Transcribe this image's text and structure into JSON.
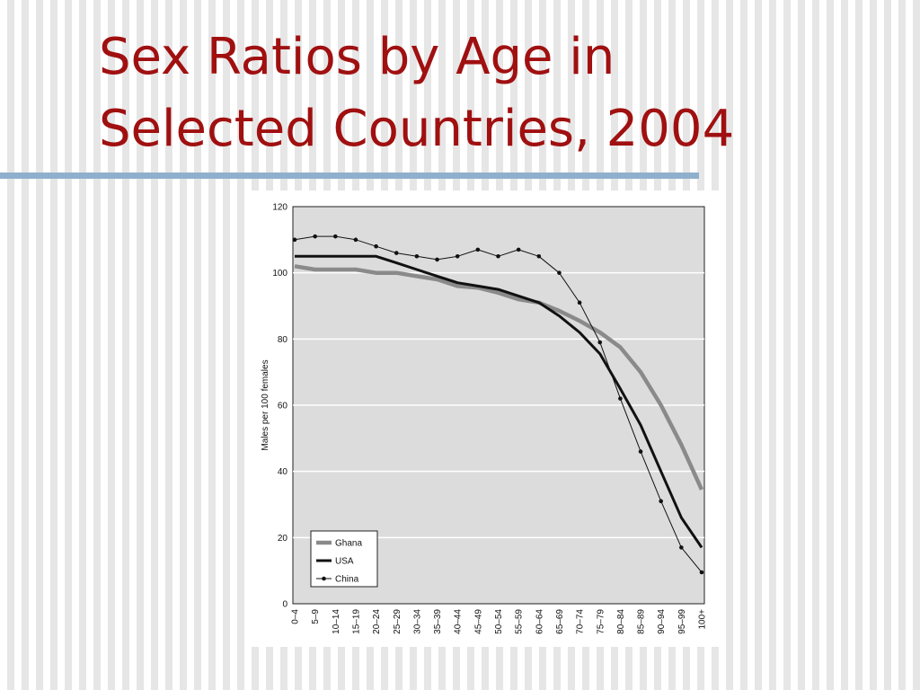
{
  "slide": {
    "title_line1": "Sex Ratios by Age in",
    "title_line2": "Selected Countries, 2004"
  },
  "chart_data": {
    "type": "line",
    "title": "",
    "xlabel": "",
    "ylabel": "Males per 100 females",
    "ylim": [
      0,
      120
    ],
    "yticks": [
      0,
      20,
      40,
      60,
      80,
      100,
      120
    ],
    "grid": true,
    "legend_position": "bottom-left",
    "categories": [
      "0–4",
      "5–9",
      "10–14",
      "15–19",
      "20–24",
      "25–29",
      "30–34",
      "35–39",
      "40–44",
      "45–49",
      "50–54",
      "55–59",
      "60–64",
      "65–69",
      "70–74",
      "75–79",
      "80–84",
      "85–89",
      "90–94",
      "95–99",
      "100+"
    ],
    "series": [
      {
        "name": "Ghana",
        "color": "#8a8a8a",
        "style": "thick",
        "values": [
          102,
          101,
          101,
          101,
          100,
          100,
          99,
          98,
          96,
          95.5,
          94,
          92,
          91,
          88.5,
          85.5,
          82,
          77.5,
          70,
          60,
          48,
          34.5
        ]
      },
      {
        "name": "USA",
        "color": "#111111",
        "style": "medium",
        "values": [
          105,
          105,
          105,
          105,
          105,
          103,
          101,
          99,
          97,
          96,
          95,
          93,
          91,
          87,
          82,
          75.5,
          65,
          54,
          40,
          26,
          17
        ]
      },
      {
        "name": "China",
        "color": "#111111",
        "style": "thin-markers",
        "values": [
          110,
          111,
          111,
          110,
          108,
          106,
          105,
          104,
          105,
          107,
          105,
          107,
          105,
          100,
          91,
          79,
          62,
          46,
          31,
          17,
          9.5
        ]
      }
    ]
  }
}
